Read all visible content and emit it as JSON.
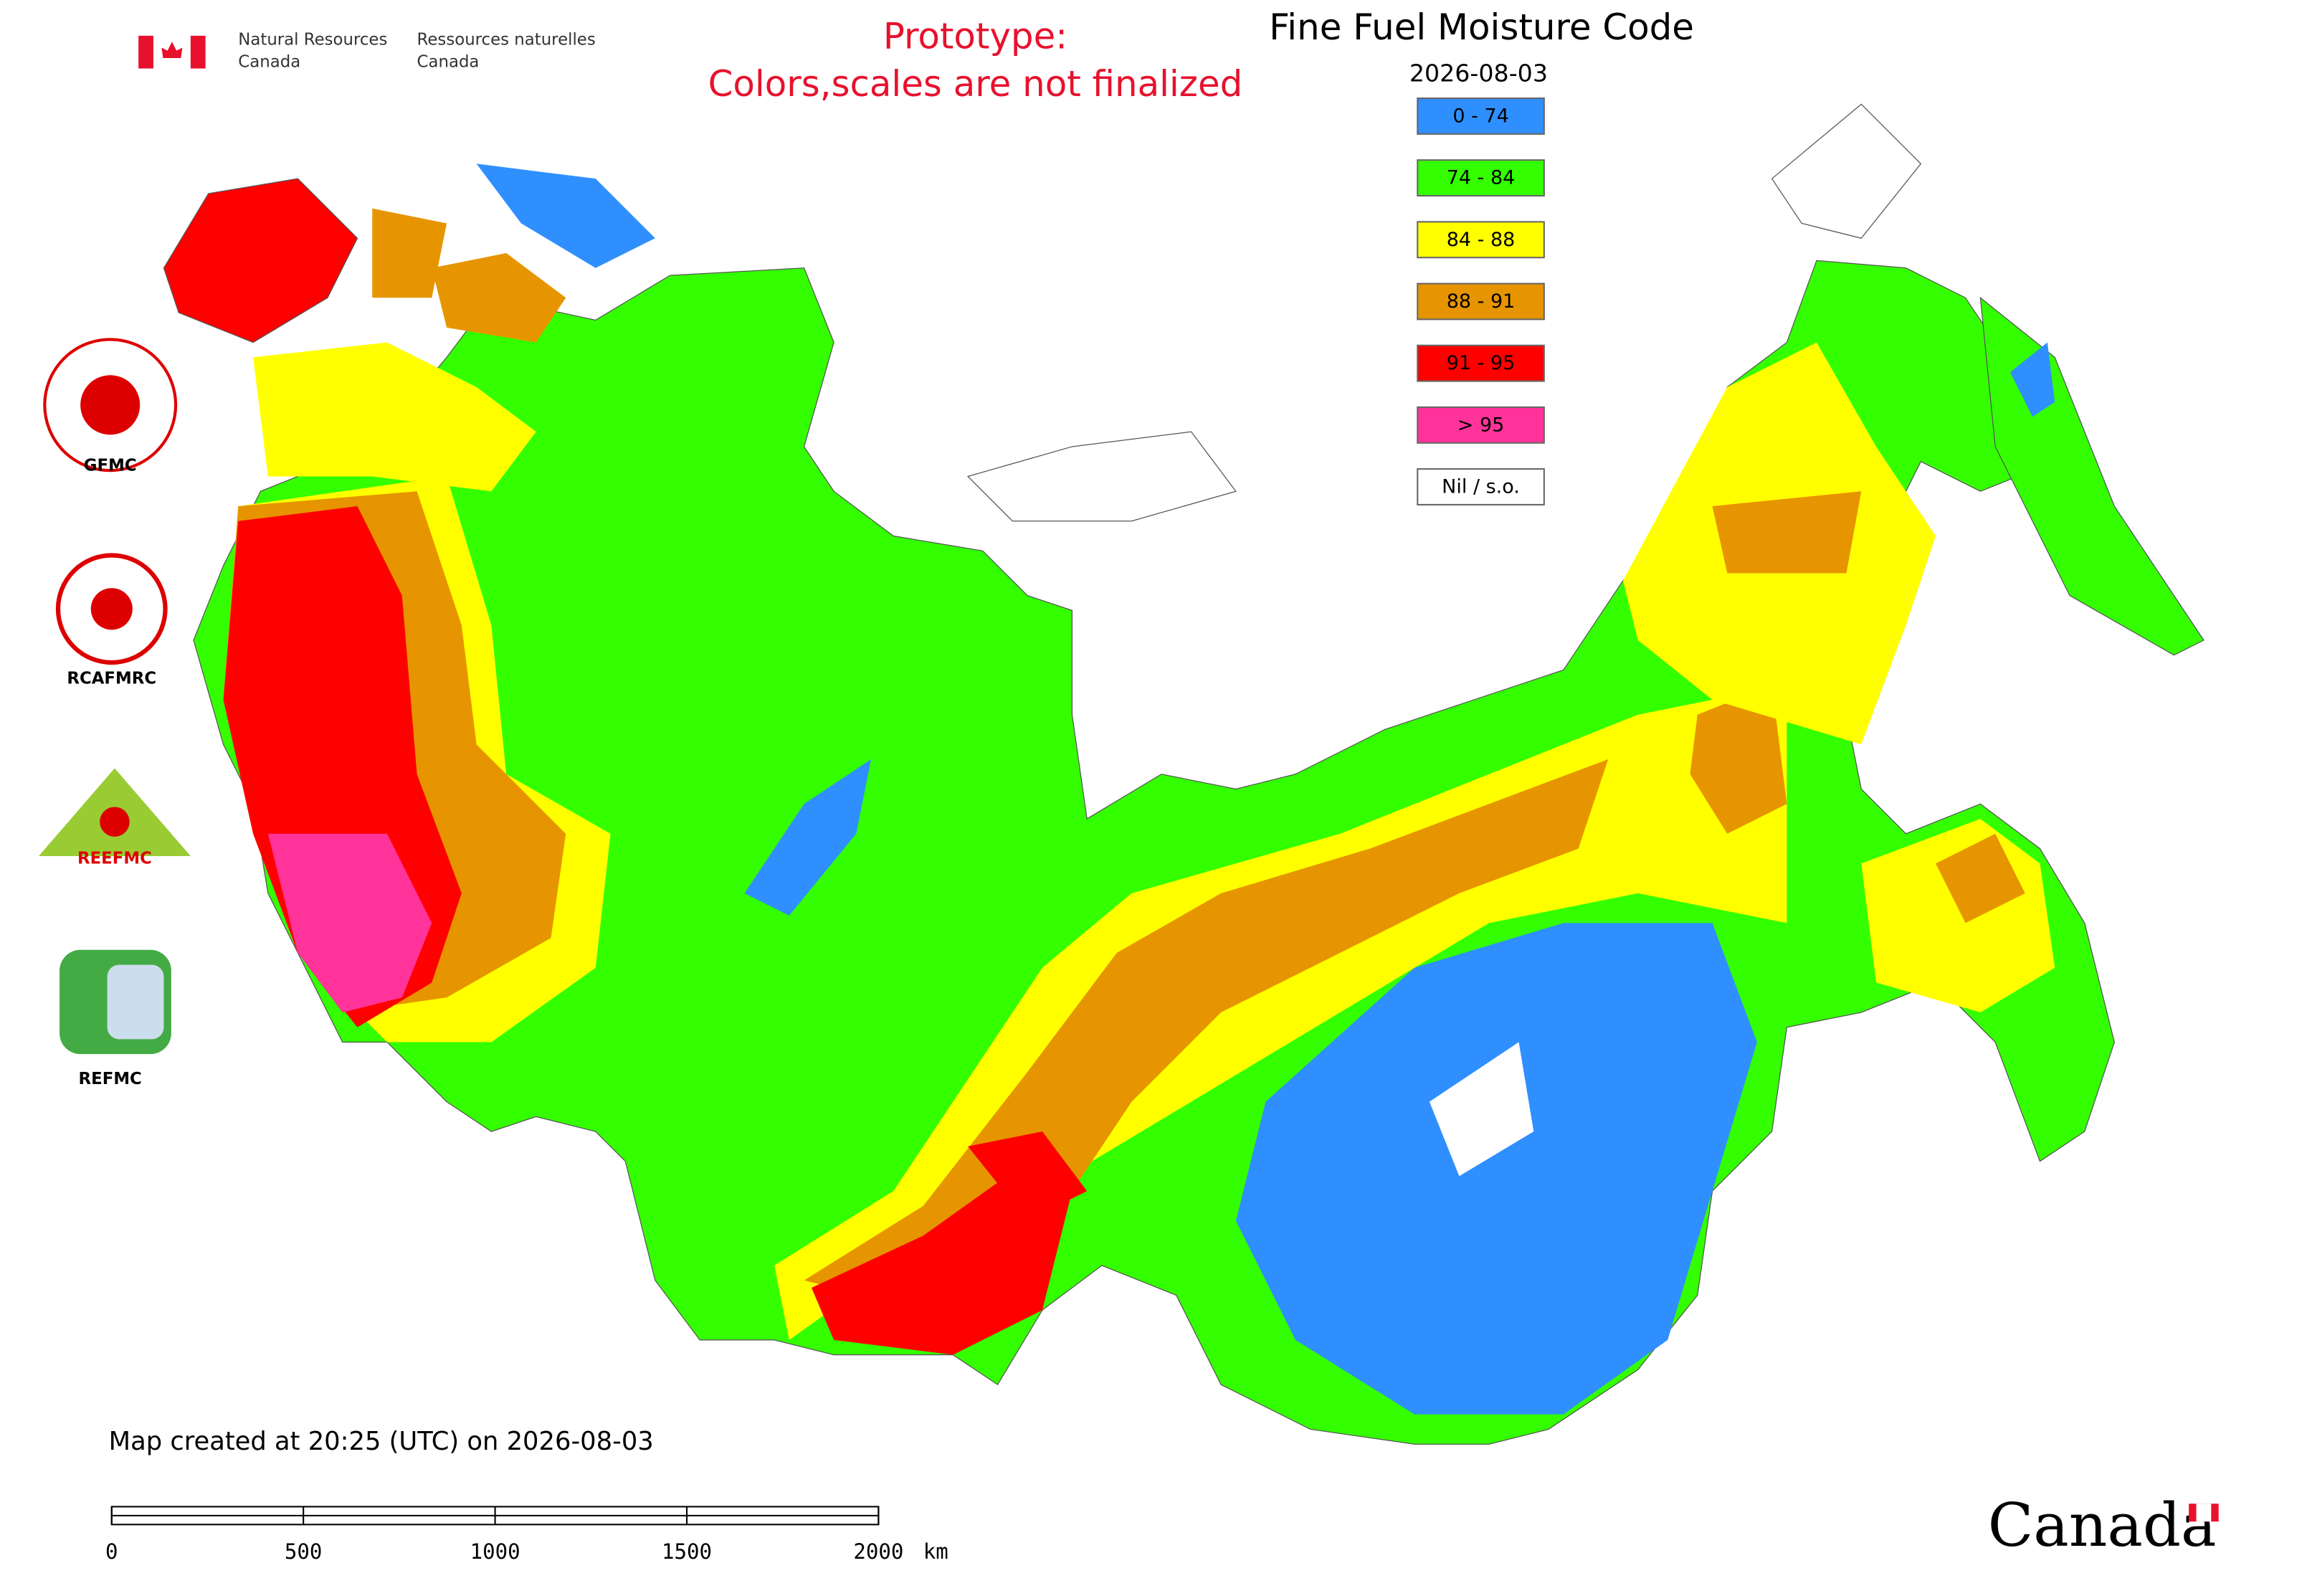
{
  "header": {
    "dept_en": [
      "Natural Resources",
      "Canada"
    ],
    "dept_fr": [
      "Ressources naturelles",
      "Canada"
    ]
  },
  "notice": [
    "Prototype:",
    "Colors,scales are not finalized"
  ],
  "title": "Fine Fuel Moisture Code",
  "date": "2026-08-03",
  "legend": [
    {
      "label": "0 - 74",
      "color": "#2f8fff"
    },
    {
      "label": "74 - 84",
      "color": "#33ff00"
    },
    {
      "label": "84 - 88",
      "color": "#ffff00"
    },
    {
      "label": "88 - 91",
      "color": "#e69500"
    },
    {
      "label": "91 - 95",
      "color": "#ff0000"
    },
    {
      "label": "> 95",
      "color": "#ff3399"
    },
    {
      "label": "Nil / s.o.",
      "color": "#ffffff"
    }
  ],
  "side_logos": [
    "GFMC",
    "RCAFMRC",
    "REFMC"
  ],
  "reefmc_badge": "REEFMC",
  "footer": "Map created at 20:25 (UTC) on 2026-08-03",
  "scale_bar": {
    "ticks": [
      0,
      500,
      1000,
      1500,
      2000
    ],
    "unit": "km"
  },
  "wordmark": "Canada"
}
